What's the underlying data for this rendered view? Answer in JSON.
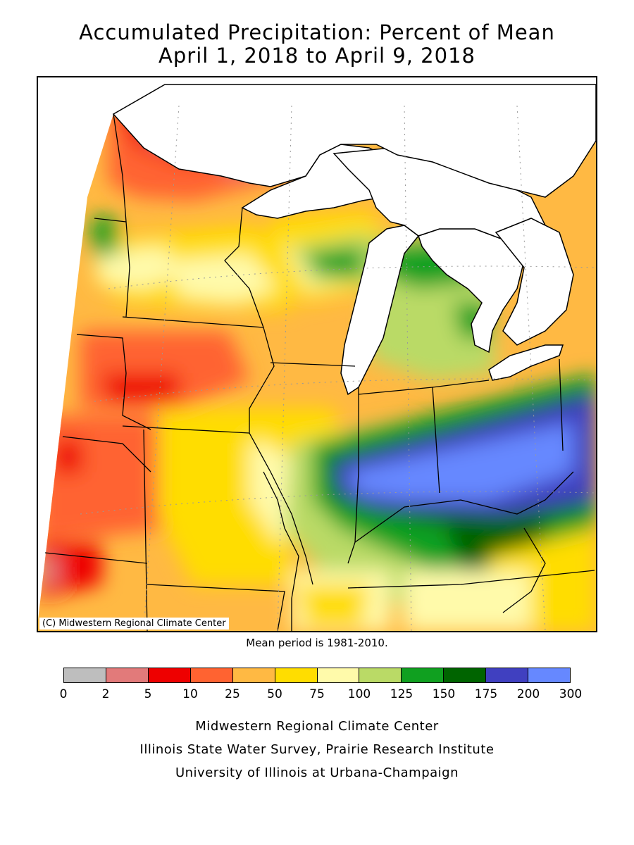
{
  "title": {
    "line1": "Accumulated Precipitation: Percent of Mean",
    "line2": "April 1, 2018 to April 9, 2018"
  },
  "map": {
    "copyright": "(C) Midwestern Regional Climate Center",
    "mean_period": "Mean period is 1981-2010."
  },
  "legend": {
    "bins": [
      {
        "range": "0-2",
        "color": "#bebebe"
      },
      {
        "range": "2-5",
        "color": "#e27a7a"
      },
      {
        "range": "5-10",
        "color": "#ee0000"
      },
      {
        "range": "10-25",
        "color": "#ff6331"
      },
      {
        "range": "25-50",
        "color": "#ffb943"
      },
      {
        "range": "50-75",
        "color": "#ffdd00"
      },
      {
        "range": "75-100",
        "color": "#fffaaa"
      },
      {
        "range": "100-125",
        "color": "#bada66"
      },
      {
        "range": "125-150",
        "color": "#10a020"
      },
      {
        "range": "150-175",
        "color": "#006400"
      },
      {
        "range": "175-200",
        "color": "#4040c0"
      },
      {
        "range": "200-300",
        "color": "#6688ff"
      }
    ],
    "ticks": [
      "0",
      "2",
      "5",
      "10",
      "25",
      "50",
      "75",
      "100",
      "125",
      "150",
      "175",
      "200",
      "300"
    ]
  },
  "credits": {
    "line1": "Midwestern Regional Climate Center",
    "line2": "Illinois State Water Survey, Prairie Research Institute",
    "line3": "University of Illinois at Urbana-Champaign"
  }
}
